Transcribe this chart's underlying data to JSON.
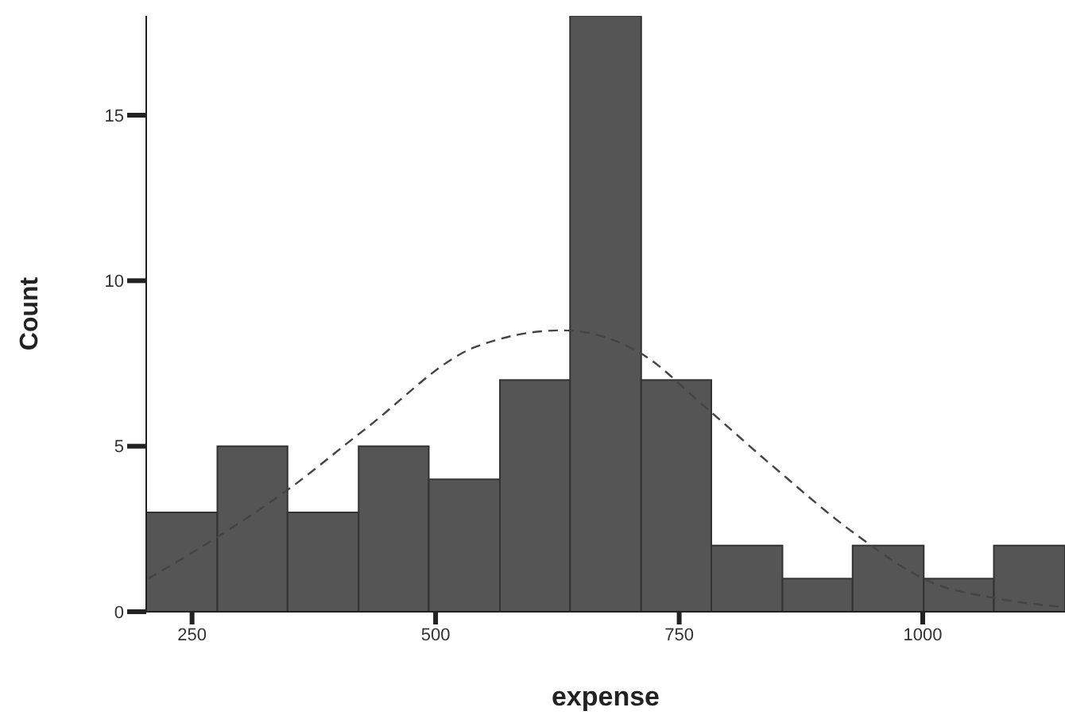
{
  "chart_data": {
    "type": "histogram",
    "xlabel": "expense",
    "ylabel": "Count",
    "xlim": [
      203,
      1146
    ],
    "xticks": [
      250,
      500,
      750,
      1000
    ],
    "ylim": [
      0,
      18
    ],
    "yticks": [
      0,
      5,
      10,
      15
    ],
    "grid": false,
    "series": [
      {
        "color": "#555555",
        "bins": [
          203,
          276,
          348,
          421,
          493,
          566,
          638,
          711,
          783,
          856,
          928,
          1001,
          1073,
          1146
        ],
        "values": [
          3,
          5,
          3,
          5,
          4,
          7,
          18,
          7,
          2,
          1,
          2,
          1,
          2
        ]
      },
      {
        "type": "line",
        "color": "#444444",
        "line_style": "dashed",
        "marker": "none",
        "x": [
          205,
          273,
          349,
          427,
          541,
          630,
          711,
          776,
          846,
          933,
          1008,
          1076,
          1141
        ],
        "values": [
          1.0,
          2.2,
          3.7,
          5.5,
          8.0,
          8.5,
          7.8,
          6.2,
          4.4,
          2.3,
          0.9,
          0.4,
          0.15
        ]
      }
    ]
  }
}
